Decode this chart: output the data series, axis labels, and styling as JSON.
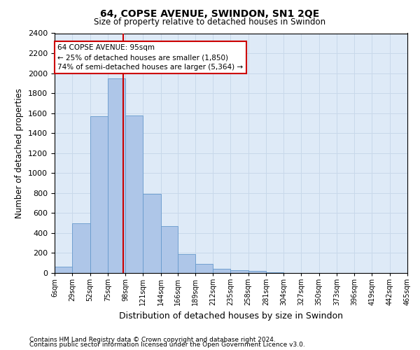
{
  "title": "64, COPSE AVENUE, SWINDON, SN1 2QE",
  "subtitle": "Size of property relative to detached houses in Swindon",
  "xlabel": "Distribution of detached houses by size in Swindon",
  "ylabel": "Number of detached properties",
  "footnote1": "Contains HM Land Registry data © Crown copyright and database right 2024.",
  "footnote2": "Contains public sector information licensed under the Open Government Licence v3.0.",
  "bar_color": "#aec6e8",
  "bar_edge_color": "#6699cc",
  "grid_color": "#c8d8ea",
  "background_color": "#deeaf7",
  "annotation_box_color": "#cc0000",
  "annotation_line1": "64 COPSE AVENUE: 95sqm",
  "annotation_line2": "← 25% of detached houses are smaller (1,850)",
  "annotation_line3": "74% of semi-detached houses are larger (5,364) →",
  "red_line_x": 95,
  "bins": [
    6,
    29,
    52,
    75,
    98,
    121,
    144,
    166,
    189,
    212,
    235,
    258,
    281,
    304,
    327,
    350,
    373,
    396,
    419,
    442,
    465
  ],
  "counts": [
    60,
    500,
    1570,
    1950,
    1580,
    790,
    470,
    190,
    90,
    40,
    30,
    20,
    5,
    2,
    2,
    2,
    1,
    1,
    0,
    0
  ],
  "ylim": [
    0,
    2400
  ],
  "yticks": [
    0,
    200,
    400,
    600,
    800,
    1000,
    1200,
    1400,
    1600,
    1800,
    2000,
    2200,
    2400
  ]
}
